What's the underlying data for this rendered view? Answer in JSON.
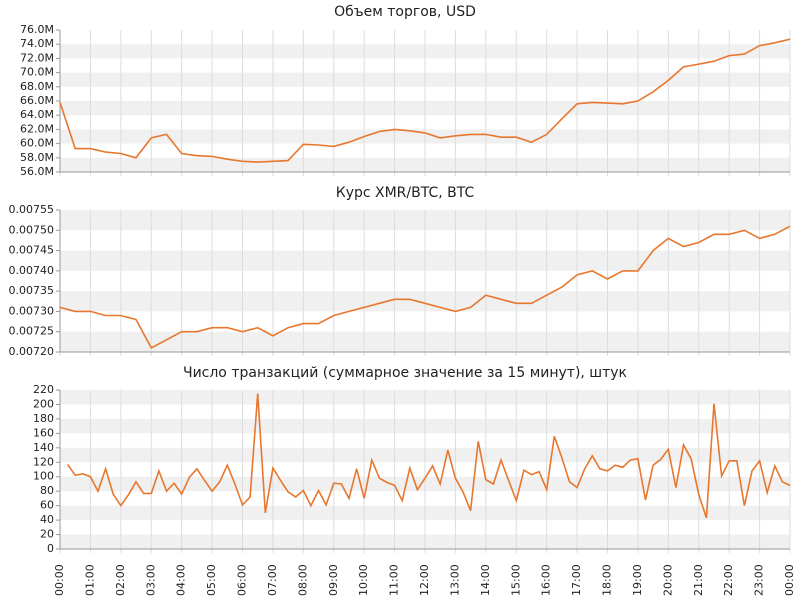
{
  "chart_data": [
    {
      "type": "line",
      "title": "Объем торгов, USD",
      "color": "#e8772e",
      "x": [
        0,
        0.5,
        1,
        1.5,
        2,
        2.5,
        3,
        3.5,
        4,
        4.5,
        5,
        5.5,
        6,
        6.5,
        7,
        7.5,
        8,
        8.5,
        9,
        9.5,
        10,
        10.5,
        11,
        11.5,
        12,
        12.5,
        13,
        13.5,
        14,
        14.5,
        15,
        15.5,
        16,
        16.5,
        17,
        17.5,
        18,
        18.5,
        19,
        19.5,
        20,
        20.5,
        21,
        21.5,
        22,
        22.5,
        23,
        23.5,
        24
      ],
      "values": [
        65.8,
        59.3,
        59.3,
        58.8,
        58.6,
        58.0,
        60.8,
        61.3,
        58.6,
        58.3,
        58.2,
        57.8,
        57.5,
        57.4,
        57.5,
        57.6,
        59.9,
        59.8,
        59.6,
        60.2,
        61.0,
        61.7,
        62.0,
        61.8,
        61.5,
        60.8,
        61.1,
        61.3,
        61.3,
        60.9,
        60.9,
        60.2,
        61.3,
        63.5,
        65.6,
        65.8,
        65.7,
        65.6,
        66.0,
        67.3,
        68.9,
        70.8,
        71.2,
        71.6,
        72.4,
        72.6,
        73.8,
        74.2,
        74.7
      ],
      "xlim": [
        0,
        24
      ],
      "ylim": [
        56,
        76
      ],
      "yticks": [
        {
          "value": 56,
          "label": "56.0M"
        },
        {
          "value": 58,
          "label": "58.0M"
        },
        {
          "value": 60,
          "label": "60.0M"
        },
        {
          "value": 62,
          "label": "62.0M"
        },
        {
          "value": 64,
          "label": "64.0M"
        },
        {
          "value": 66,
          "label": "66.0M"
        },
        {
          "value": 68,
          "label": "68.0M"
        },
        {
          "value": 70,
          "label": "70.0M"
        },
        {
          "value": 72,
          "label": "72.0M"
        },
        {
          "value": 74,
          "label": "74.0M"
        },
        {
          "value": 76,
          "label": "76.0M"
        }
      ]
    },
    {
      "type": "line",
      "title": "Курс XMR/BTC, BTC",
      "color": "#e8772e",
      "x": [
        0,
        0.5,
        1,
        1.5,
        2,
        2.5,
        3,
        3.5,
        4,
        4.5,
        5,
        5.5,
        6,
        6.5,
        7,
        7.5,
        8,
        8.5,
        9,
        9.5,
        10,
        10.5,
        11,
        11.5,
        12,
        12.5,
        13,
        13.5,
        14,
        14.5,
        15,
        15.5,
        16,
        16.5,
        17,
        17.5,
        18,
        18.5,
        19,
        19.5,
        20,
        20.5,
        21,
        21.5,
        22,
        22.5,
        23,
        23.5,
        24
      ],
      "values": [
        0.00731,
        0.0073,
        0.0073,
        0.00729,
        0.00729,
        0.00728,
        0.00721,
        0.00723,
        0.00725,
        0.00725,
        0.00726,
        0.00726,
        0.00725,
        0.00726,
        0.00724,
        0.00726,
        0.00727,
        0.00727,
        0.00729,
        0.0073,
        0.00731,
        0.00732,
        0.00733,
        0.00733,
        0.00732,
        0.00731,
        0.0073,
        0.00731,
        0.00734,
        0.00733,
        0.00732,
        0.00732,
        0.00734,
        0.00736,
        0.00739,
        0.0074,
        0.00738,
        0.0074,
        0.0074,
        0.00745,
        0.00748,
        0.00746,
        0.00747,
        0.00749,
        0.00749,
        0.0075,
        0.00748,
        0.00749,
        0.00751
      ],
      "xlim": [
        0,
        24
      ],
      "ylim": [
        0.0072,
        0.00755
      ],
      "yticks": [
        {
          "value": 0.0072,
          "label": "0.00720"
        },
        0.00725,
        {
          "value": 0.0073,
          "label": "0.00730"
        },
        0.00735,
        {
          "value": 0.0074,
          "label": "0.00740"
        },
        0.00745,
        {
          "value": 0.0075,
          "label": "0.00750"
        },
        0.00755
      ]
    },
    {
      "type": "line",
      "title": "Число транзакций (суммарное значение за 15 минут), штук",
      "color": "#e8772e",
      "x": [
        0.25,
        0.5,
        0.75,
        1,
        1.25,
        1.5,
        1.75,
        2,
        2.25,
        2.5,
        2.75,
        3,
        3.25,
        3.5,
        3.75,
        4,
        4.25,
        4.5,
        4.75,
        5,
        5.25,
        5.5,
        5.75,
        6,
        6.25,
        6.5,
        6.75,
        7,
        7.25,
        7.5,
        7.75,
        8,
        8.25,
        8.5,
        8.75,
        9,
        9.25,
        9.5,
        9.75,
        10,
        10.25,
        10.5,
        10.75,
        11,
        11.25,
        11.5,
        11.75,
        12,
        12.25,
        12.5,
        12.75,
        13,
        13.25,
        13.5,
        13.75,
        14,
        14.25,
        14.5,
        14.75,
        15,
        15.25,
        15.5,
        15.75,
        16,
        16.25,
        16.5,
        16.75,
        17,
        17.25,
        17.5,
        17.75,
        18,
        18.25,
        18.5,
        18.75,
        19,
        19.25,
        19.5,
        19.75,
        20,
        20.25,
        20.5,
        20.75,
        21,
        21.25,
        21.5,
        21.75,
        22,
        22.25,
        22.5,
        22.75,
        23,
        23.25,
        23.5,
        23.75,
        24
      ],
      "values": [
        117,
        102,
        104,
        100,
        80,
        111,
        76,
        60,
        75,
        93,
        77,
        77,
        108,
        80,
        91,
        76,
        99,
        111,
        95,
        80,
        93,
        116,
        90,
        61,
        72,
        215,
        50,
        112,
        95,
        79,
        72,
        81,
        60,
        81,
        61,
        91,
        90,
        70,
        111,
        70,
        123,
        98,
        92,
        88,
        67,
        112,
        82,
        98,
        115,
        90,
        137,
        98,
        79,
        53,
        149,
        96,
        90,
        123,
        95,
        67,
        109,
        103,
        107,
        82,
        156,
        126,
        93,
        85,
        111,
        129,
        111,
        108,
        116,
        113,
        123,
        125,
        68,
        116,
        124,
        138,
        85,
        144,
        125,
        75,
        43,
        201,
        101,
        122,
        122,
        60,
        108,
        122,
        78,
        115,
        93,
        88
      ],
      "xlim": [
        0,
        24
      ],
      "ylim": [
        0,
        220
      ],
      "yticks": [
        0,
        20,
        40,
        60,
        80,
        100,
        120,
        140,
        160,
        180,
        200,
        220
      ],
      "xticks": [
        {
          "value": 0,
          "label": "00:00"
        },
        {
          "value": 1,
          "label": "01:00"
        },
        {
          "value": 2,
          "label": "02:00"
        },
        {
          "value": 3,
          "label": "03:00"
        },
        {
          "value": 4,
          "label": "04:00"
        },
        {
          "value": 5,
          "label": "05:00"
        },
        {
          "value": 6,
          "label": "06:00"
        },
        {
          "value": 7,
          "label": "07:00"
        },
        {
          "value": 8,
          "label": "08:00"
        },
        {
          "value": 9,
          "label": "09:00"
        },
        {
          "value": 10,
          "label": "10:00"
        },
        {
          "value": 11,
          "label": "11:00"
        },
        {
          "value": 12,
          "label": "12:00"
        },
        {
          "value": 13,
          "label": "13:00"
        },
        {
          "value": 14,
          "label": "14:00"
        },
        {
          "value": 15,
          "label": "15:00"
        },
        {
          "value": 16,
          "label": "16:00"
        },
        {
          "value": 17,
          "label": "17:00"
        },
        {
          "value": 18,
          "label": "18:00"
        },
        {
          "value": 19,
          "label": "19:00"
        },
        {
          "value": 20,
          "label": "20:00"
        },
        {
          "value": 21,
          "label": "21:00"
        },
        {
          "value": 22,
          "label": "22:00"
        },
        {
          "value": 23,
          "label": "23:00"
        },
        {
          "value": 24,
          "label": "00:00"
        }
      ]
    }
  ]
}
